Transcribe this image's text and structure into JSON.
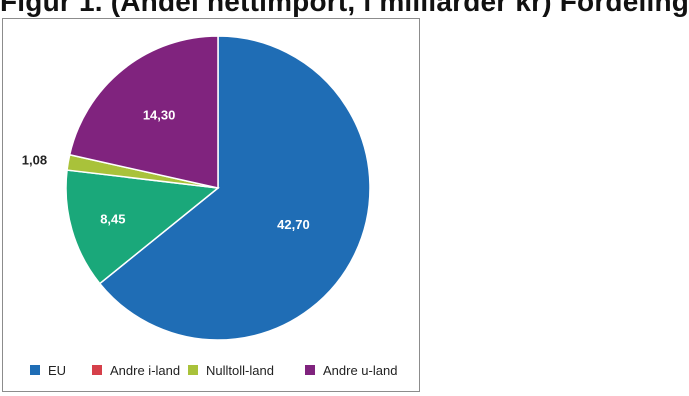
{
  "top_clip_text": "Figur 1. (Andel nettimport, i milliarder kr) Fordeling",
  "chart_data": {
    "type": "pie",
    "title": "",
    "categories": [
      "EU",
      "Andre i-land",
      "Nulltoll-land",
      "Andre u-land"
    ],
    "values": [
      42.7,
      0,
      1.08,
      14.3
    ],
    "data_labels": [
      "42,70",
      "",
      "1,08",
      "14,30"
    ],
    "extra_slice": {
      "value": 8.45,
      "label": "8,45",
      "color": "#1aa87a"
    },
    "colors": [
      "#1f6db5",
      "#d6404a",
      "#a9c23a",
      "#80237e"
    ],
    "legend_position": "bottom"
  }
}
